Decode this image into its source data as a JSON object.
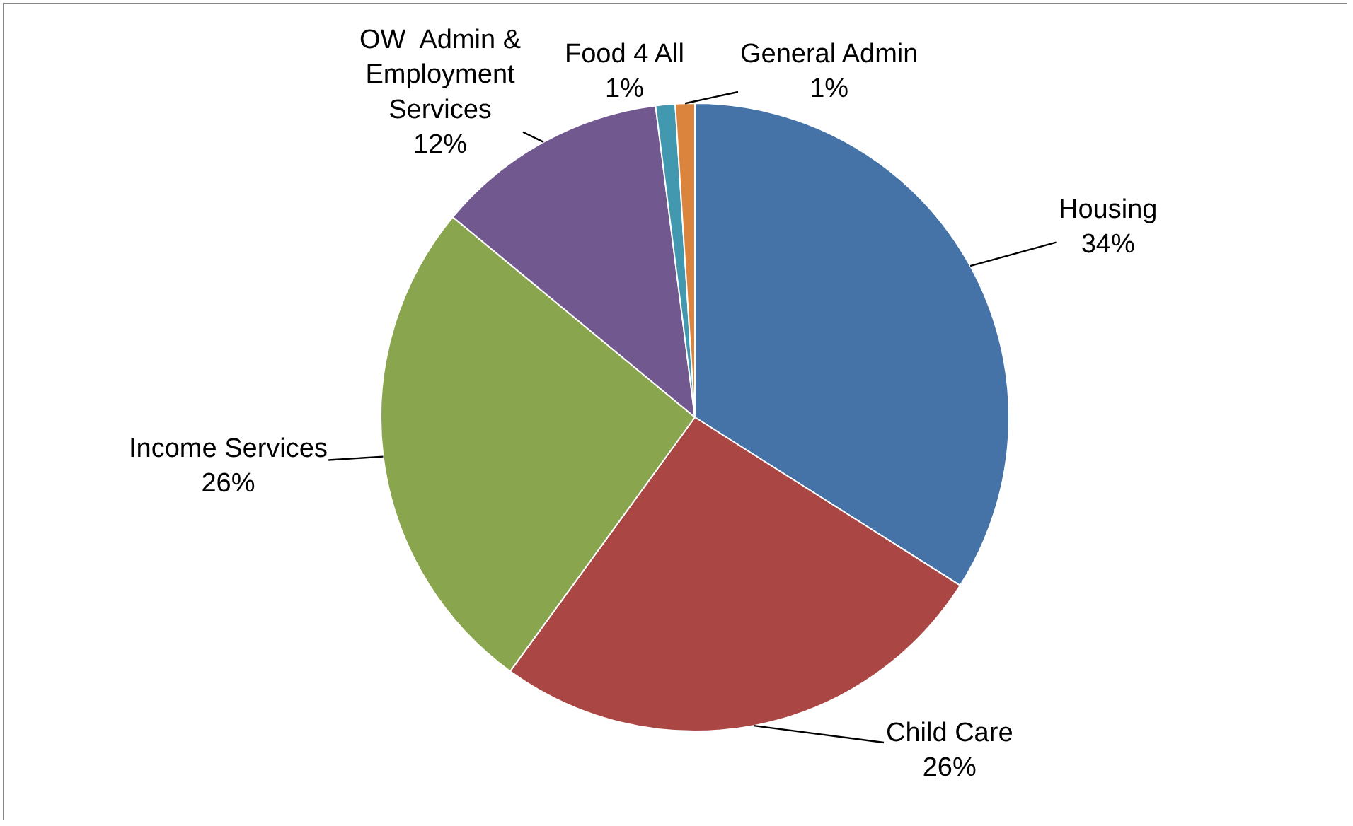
{
  "chart_data": {
    "type": "pie",
    "categories": [
      "Housing",
      "Child Care",
      "Income Services",
      "OW  Admin & Employment Services",
      "Food 4 All",
      "General Admin"
    ],
    "values": [
      34,
      26,
      26,
      12,
      1,
      1
    ],
    "value_labels": [
      "34%",
      "26%",
      "26%",
      "12%",
      "1%",
      "1%"
    ],
    "colors": [
      "#4572a7",
      "#aa4643",
      "#89a54e",
      "#71588f",
      "#4198af",
      "#db843d"
    ],
    "legend": false
  }
}
